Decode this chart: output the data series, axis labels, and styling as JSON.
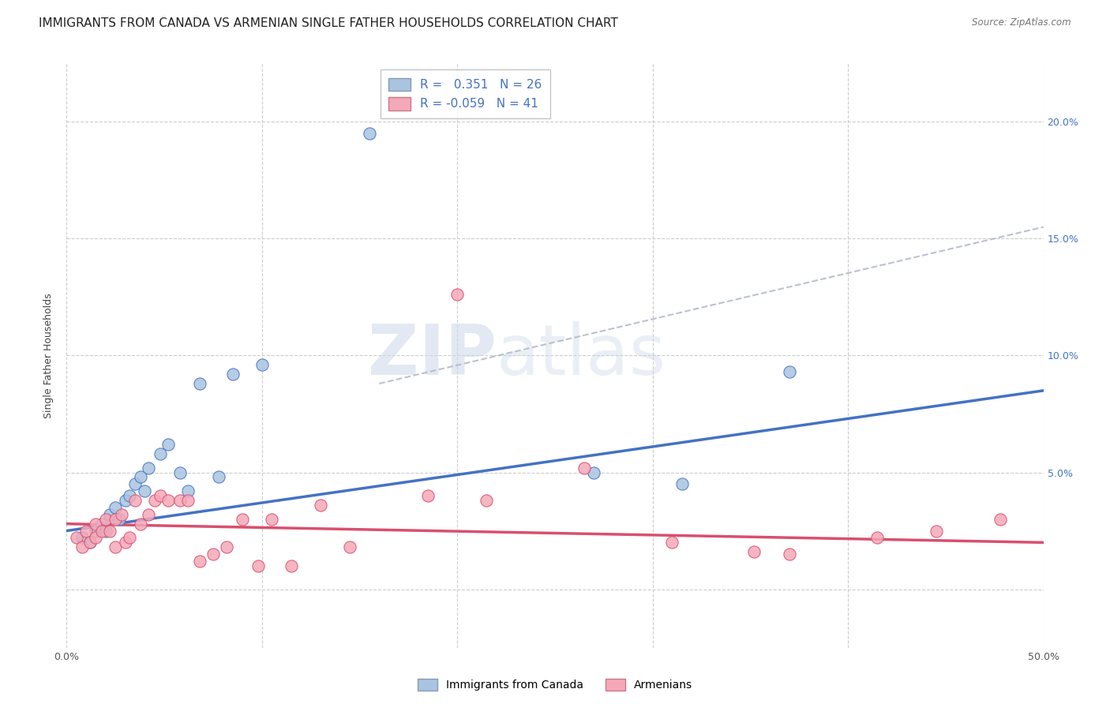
{
  "title": "IMMIGRANTS FROM CANADA VS ARMENIAN SINGLE FATHER HOUSEHOLDS CORRELATION CHART",
  "source": "Source: ZipAtlas.com",
  "ylabel": "Single Father Households",
  "xlim": [
    0.0,
    0.5
  ],
  "ylim": [
    -0.025,
    0.225
  ],
  "x_ticks": [
    0.0,
    0.1,
    0.2,
    0.3,
    0.4,
    0.5
  ],
  "x_tick_labels": [
    "0.0%",
    "",
    "",
    "",
    "",
    "50.0%"
  ],
  "y_ticks": [
    0.0,
    0.05,
    0.1,
    0.15,
    0.2
  ],
  "y_tick_labels_right": [
    "",
    "5.0%",
    "10.0%",
    "15.0%",
    "20.0%"
  ],
  "legend_label1": "Immigrants from Canada",
  "legend_label2": "Armenians",
  "r1": 0.351,
  "n1": 26,
  "r2": -0.059,
  "n2": 41,
  "color1": "#A8C4E0",
  "color2": "#F4A8B8",
  "line_color1": "#4472C4",
  "line_color2": "#D94F6E",
  "trendline1_x": [
    0.0,
    0.5
  ],
  "trendline1_y": [
    0.025,
    0.085
  ],
  "trendline2_x": [
    0.0,
    0.5
  ],
  "trendline2_y": [
    0.028,
    0.02
  ],
  "dashed_line_x": [
    0.16,
    0.5
  ],
  "dashed_line_y": [
    0.088,
    0.155
  ],
  "blue_points_x": [
    0.008,
    0.012,
    0.015,
    0.018,
    0.02,
    0.022,
    0.025,
    0.027,
    0.03,
    0.032,
    0.035,
    0.038,
    0.04,
    0.042,
    0.048,
    0.052,
    0.058,
    0.062,
    0.068,
    0.078,
    0.085,
    0.1,
    0.155,
    0.27,
    0.315,
    0.37
  ],
  "blue_points_y": [
    0.022,
    0.02,
    0.025,
    0.028,
    0.025,
    0.032,
    0.035,
    0.03,
    0.038,
    0.04,
    0.045,
    0.048,
    0.042,
    0.052,
    0.058,
    0.062,
    0.05,
    0.042,
    0.088,
    0.048,
    0.092,
    0.096,
    0.195,
    0.05,
    0.045,
    0.093
  ],
  "pink_points_x": [
    0.005,
    0.008,
    0.01,
    0.012,
    0.015,
    0.015,
    0.018,
    0.02,
    0.022,
    0.025,
    0.025,
    0.028,
    0.03,
    0.032,
    0.035,
    0.038,
    0.042,
    0.045,
    0.048,
    0.052,
    0.058,
    0.062,
    0.068,
    0.075,
    0.082,
    0.09,
    0.098,
    0.105,
    0.115,
    0.13,
    0.145,
    0.185,
    0.2,
    0.215,
    0.265,
    0.31,
    0.352,
    0.37,
    0.415,
    0.445,
    0.478
  ],
  "pink_points_y": [
    0.022,
    0.018,
    0.025,
    0.02,
    0.028,
    0.022,
    0.025,
    0.03,
    0.025,
    0.03,
    0.018,
    0.032,
    0.02,
    0.022,
    0.038,
    0.028,
    0.032,
    0.038,
    0.04,
    0.038,
    0.038,
    0.038,
    0.012,
    0.015,
    0.018,
    0.03,
    0.01,
    0.03,
    0.01,
    0.036,
    0.018,
    0.04,
    0.126,
    0.038,
    0.052,
    0.02,
    0.016,
    0.015,
    0.022,
    0.025,
    0.03
  ],
  "watermark_zip": "ZIP",
  "watermark_atlas": "atlas",
  "title_fontsize": 11,
  "axis_label_fontsize": 9,
  "tick_fontsize": 9,
  "legend_fontsize": 11
}
